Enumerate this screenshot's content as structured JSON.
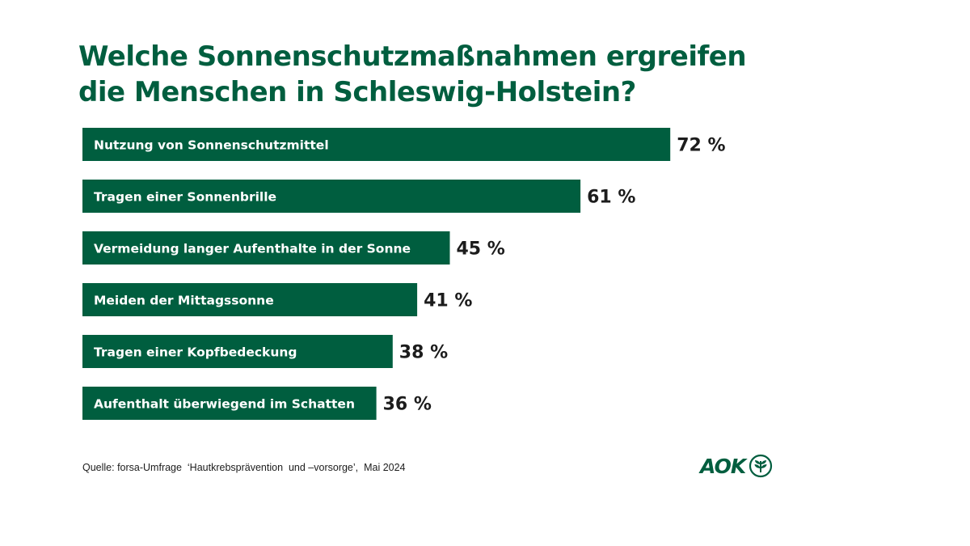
{
  "title": {
    "line1": "Welche Sonnenschutzmaßnahmen ergreifen",
    "line2": "die Menschen in Schleswig-Holstein?"
  },
  "chart_data": {
    "type": "bar",
    "orientation": "horizontal",
    "categories": [
      "Nutzung von Sonnenschutzmittel",
      "Tragen einer Sonnenbrille",
      "Vermeidung langer Aufenthalte in der Sonne",
      "Meiden der Mittagssonne",
      "Tragen einer Kopfbedeckung",
      "Aufenthalt überwiegend im Schatten"
    ],
    "values": [
      72,
      61,
      45,
      41,
      38,
      36
    ],
    "value_labels": [
      "72 %",
      "61 %",
      "45 %",
      "41 %",
      "38 %",
      "36 %"
    ],
    "unit": "%",
    "xlim": [
      0,
      100
    ],
    "grid": false,
    "legend": "none",
    "colors": {
      "bar": "#005e3f",
      "bar_label": "#ffffff",
      "value_label": "#1c1c1c"
    }
  },
  "source": "Quelle: forsa-Umfrage  ‘Hautkrebsprävention  und –vorsorge’,  Mai 2024",
  "logo": {
    "text": "AOK",
    "icon": "aok-tree-icon",
    "color": "#005e3f"
  }
}
